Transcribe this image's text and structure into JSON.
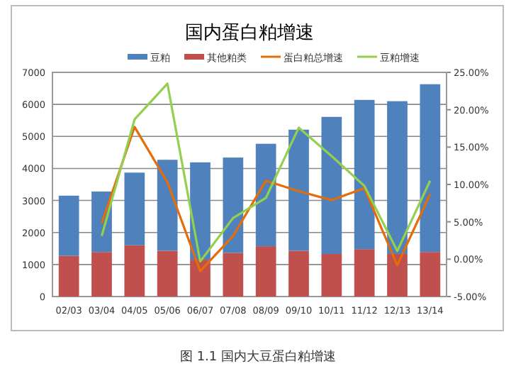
{
  "chart_data": {
    "type": "bar",
    "title": "国内蛋白粕增速",
    "stacked": true,
    "legend": "top",
    "grid": "y",
    "categories": [
      "02/03",
      "03/04",
      "04/05",
      "05/06",
      "06/07",
      "07/08",
      "08/09",
      "09/10",
      "10/11",
      "11/12",
      "12/13",
      "13/14"
    ],
    "series": [
      {
        "name": "其他粕类",
        "color": "#c0504d",
        "values": [
          1270,
          1390,
          1600,
          1430,
          1150,
          1360,
          1570,
          1430,
          1330,
          1480,
          1330,
          1390
        ]
      },
      {
        "name": "豆粕",
        "color": "#4f81bd",
        "values": [
          1880,
          1890,
          2270,
          2840,
          3040,
          2980,
          3200,
          3780,
          4280,
          4660,
          4770,
          5240
        ]
      },
      {
        "name": "蛋白粕总增速",
        "type": "line",
        "axis": "y2",
        "color": "#e46c0a",
        "values": [
          null,
          4.8,
          17.7,
          10.3,
          -1.6,
          3.1,
          10.5,
          9.1,
          7.9,
          9.5,
          -0.8,
          8.7
        ]
      },
      {
        "name": "豆粕增速",
        "type": "line",
        "axis": "y2",
        "color": "#92d050",
        "values": [
          null,
          3.1,
          18.7,
          23.5,
          -0.3,
          5.5,
          8.2,
          17.6,
          13.8,
          9.8,
          1.1,
          10.5
        ]
      }
    ],
    "ylim": [
      0,
      7000
    ],
    "yticks": [
      0,
      1000,
      2000,
      3000,
      4000,
      5000,
      6000,
      7000
    ],
    "y2lim": [
      -5,
      25
    ],
    "y2ticks": [
      {
        "value": -5,
        "label": "-5.00%"
      },
      {
        "value": 0,
        "label": "0.00%"
      },
      {
        "value": 5,
        "label": "5.00%"
      },
      {
        "value": 10,
        "label": "10.00%"
      },
      {
        "value": 15,
        "label": "15.00%"
      },
      {
        "value": 20,
        "label": "20.00%"
      },
      {
        "value": 25,
        "label": "25.00%"
      }
    ],
    "annotations": [
      "图 1.1 国内大豆蛋白粕增速"
    ]
  }
}
